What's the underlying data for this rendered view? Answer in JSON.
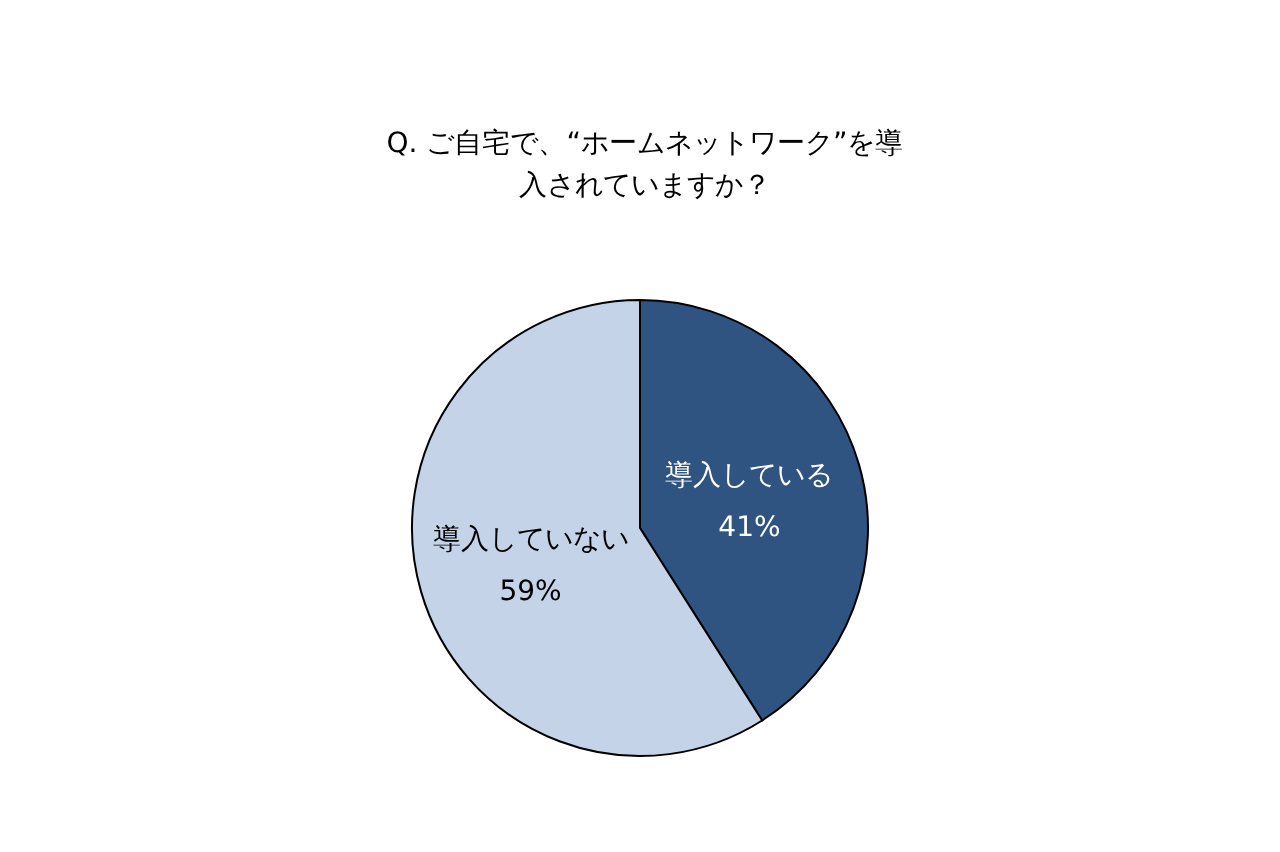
{
  "chart_data": {
    "type": "pie",
    "title": "Q. ご自宅で、“ホームネットワーク”を導入されていますか？",
    "categories": [
      "導入している",
      "導入していない"
    ],
    "values": [
      41,
      59
    ],
    "value_labels": [
      "41%",
      "59%"
    ],
    "colors": [
      "#2f5482",
      "#c4d3e8"
    ]
  }
}
